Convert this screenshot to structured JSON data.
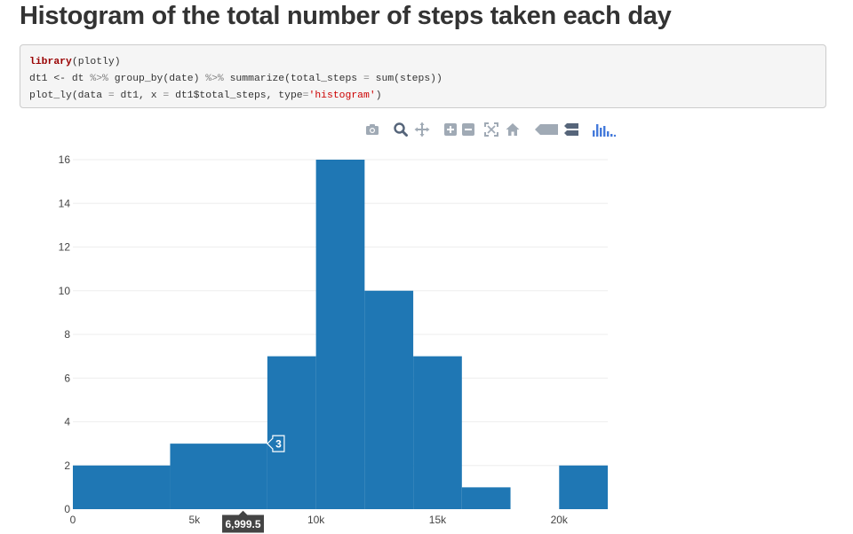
{
  "page": {
    "title": "Histogram of the total number of steps taken each day"
  },
  "code": {
    "line1": {
      "kw": "library",
      "rest": "(plotly)"
    },
    "line2": {
      "a": "dt1 <- dt ",
      "pipe1": "%>%",
      "b": " group_by(date) ",
      "pipe2": "%>%",
      "c": " summarize(total_steps ",
      "eq": "=",
      "d": " sum(steps))"
    },
    "line3": {
      "a": "plot_ly(data ",
      "eq1": "=",
      "b": " dt1, x ",
      "eq2": "=",
      "c": " dt1$total_steps, type",
      "eq3": "=",
      "str": "'histogram'",
      "d": ")"
    }
  },
  "modebar": {
    "icons": [
      "camera-icon",
      "zoom-icon",
      "pan-icon",
      "zoom-in-icon",
      "zoom-out-icon",
      "autoscale-icon",
      "reset-axes-icon",
      "hover-closest-icon",
      "hover-compare-icon",
      "plotly-logo-icon"
    ],
    "color": "#a0aab5",
    "logo_color": "#447adb"
  },
  "chart_data": {
    "type": "histogram",
    "title": "",
    "xlabel": "",
    "ylabel": "",
    "bar_color": "#1f77b4",
    "grid": "horizontal",
    "xlim": [
      0,
      22000
    ],
    "ylim": [
      0,
      16
    ],
    "x_ticks": [
      0,
      5000,
      10000,
      15000,
      20000
    ],
    "x_tick_labels": [
      "0",
      "5k",
      "10k",
      "15k",
      "20k"
    ],
    "y_ticks": [
      0,
      2,
      4,
      6,
      8,
      10,
      12,
      14,
      16
    ],
    "y_tick_labels": [
      "0",
      "2",
      "4",
      "6",
      "8",
      "10",
      "12",
      "14",
      "16"
    ],
    "bins": [
      {
        "x0": 0,
        "x1": 4000,
        "count": 2
      },
      {
        "x0": 4000,
        "x1": 8000,
        "count": 3
      },
      {
        "x0": 8000,
        "x1": 10000,
        "count": 7
      },
      {
        "x0": 10000,
        "x1": 12000,
        "count": 16
      },
      {
        "x0": 12000,
        "x1": 14000,
        "count": 10
      },
      {
        "x0": 14000,
        "x1": 16000,
        "count": 7
      },
      {
        "x0": 16000,
        "x1": 18000,
        "count": 1
      },
      {
        "x0": 18000,
        "x1": 20000,
        "count": 0
      },
      {
        "x0": 20000,
        "x1": 22000,
        "count": 2
      }
    ],
    "hover": {
      "x_label": "6,999.5",
      "x_value": 6999.5,
      "y_label": "3",
      "y_value": 3
    }
  }
}
